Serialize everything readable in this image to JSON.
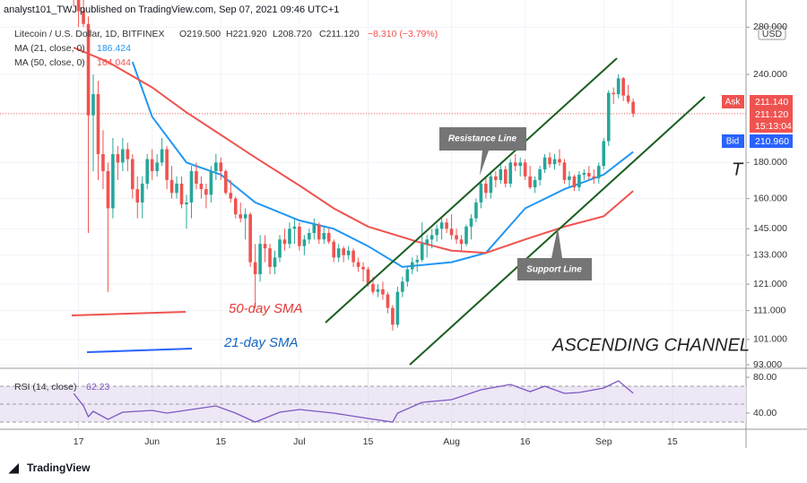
{
  "header": "analyst101_TWJ published on TradingView.com, Sep 07, 2021 09:46 UTC+1",
  "footer": "TradingView",
  "chart_data": {
    "type": "candlestick",
    "log_scale": true,
    "symbol": "Litecoin / U.S. Dollar, 1D, BITFINEX",
    "ohlc_labels": [
      "O219.500",
      "H221.920",
      "L208.720",
      "C211.120"
    ],
    "change_label": "−8.310 (−3.79%)",
    "currency": "USD",
    "up_color": "#26a69a",
    "down_color": "#ef5350",
    "xlim": [
      "2021-05-01",
      "2021-09-30"
    ],
    "xticks": [
      {
        "value": "2021-05-17",
        "label": "17"
      },
      {
        "value": "2021-06-01",
        "label": "Jun"
      },
      {
        "value": "2021-06-15",
        "label": "15"
      },
      {
        "value": "2021-07-01",
        "label": "Jul"
      },
      {
        "value": "2021-07-15",
        "label": "15"
      },
      {
        "value": "2021-08-01",
        "label": "Aug"
      },
      {
        "value": "2021-08-16",
        "label": "16"
      },
      {
        "value": "2021-09-01",
        "label": "Sep"
      },
      {
        "value": "2021-09-15",
        "label": "15"
      }
    ],
    "ylim": [
      92.2,
      306
    ],
    "yticks": [
      {
        "value": 280,
        "label": "280.000"
      },
      {
        "value": 240,
        "label": "240.000"
      },
      {
        "value": 180,
        "label": "180.000"
      },
      {
        "value": 160,
        "label": "160.000"
      },
      {
        "value": 145,
        "label": "145.000"
      },
      {
        "value": 133,
        "label": "133.000"
      },
      {
        "value": 121,
        "label": "121.000"
      },
      {
        "value": 111,
        "label": "111.000"
      },
      {
        "value": 101,
        "label": "101.000"
      },
      {
        "value": 93,
        "label": "93.000"
      }
    ],
    "price_labels": {
      "ask": "Ask",
      "ask_value": {
        "value": 211.14,
        "label": "211.140"
      },
      "last": {
        "value": 211.12,
        "label": "211.120"
      },
      "countdown": "15:13:04",
      "bid": "Bid",
      "bid_value": {
        "value": 210.96,
        "label": "210.960"
      }
    },
    "candles": [
      [
        "2021-05-16",
        340,
        355,
        300,
        320
      ],
      [
        "2021-05-17",
        320,
        325,
        280,
        295
      ],
      [
        "2021-05-18",
        295,
        310,
        280,
        283
      ],
      [
        "2021-05-19",
        283,
        290,
        143,
        210
      ],
      [
        "2021-05-20",
        210,
        240,
        175,
        225
      ],
      [
        "2021-05-21",
        225,
        235,
        170,
        185
      ],
      [
        "2021-05-22",
        185,
        200,
        165,
        175
      ],
      [
        "2021-05-23",
        175,
        180,
        118,
        155
      ],
      [
        "2021-05-24",
        155,
        195,
        150,
        185
      ],
      [
        "2021-05-25",
        185,
        190,
        170,
        180
      ],
      [
        "2021-05-26",
        180,
        195,
        175,
        188
      ],
      [
        "2021-05-27",
        188,
        192,
        175,
        182
      ],
      [
        "2021-05-28",
        182,
        185,
        160,
        165
      ],
      [
        "2021-05-29",
        165,
        172,
        150,
        158
      ],
      [
        "2021-05-30",
        158,
        172,
        150,
        168
      ],
      [
        "2021-05-31",
        168,
        185,
        165,
        182
      ],
      [
        "2021-06-01",
        182,
        188,
        170,
        175
      ],
      [
        "2021-06-02",
        175,
        185,
        172,
        180
      ],
      [
        "2021-06-03",
        180,
        195,
        178,
        188
      ],
      [
        "2021-06-04",
        188,
        190,
        165,
        170
      ],
      [
        "2021-06-05",
        170,
        178,
        160,
        163
      ],
      [
        "2021-06-06",
        163,
        172,
        160,
        168
      ],
      [
        "2021-06-07",
        168,
        172,
        155,
        157
      ],
      [
        "2021-06-08",
        157,
        162,
        145,
        158
      ],
      [
        "2021-06-09",
        158,
        178,
        150,
        175
      ],
      [
        "2021-06-10",
        175,
        180,
        165,
        168
      ],
      [
        "2021-06-11",
        168,
        172,
        160,
        165
      ],
      [
        "2021-06-12",
        165,
        168,
        155,
        162
      ],
      [
        "2021-06-13",
        162,
        178,
        158,
        175
      ],
      [
        "2021-06-14",
        175,
        185,
        170,
        180
      ],
      [
        "2021-06-15",
        180,
        183,
        170,
        175
      ],
      [
        "2021-06-16",
        175,
        176,
        162,
        163
      ],
      [
        "2021-06-17",
        163,
        170,
        158,
        160
      ],
      [
        "2021-06-18",
        160,
        161,
        150,
        152
      ],
      [
        "2021-06-19",
        152,
        158,
        148,
        150
      ],
      [
        "2021-06-20",
        150,
        155,
        140,
        152
      ],
      [
        "2021-06-21",
        152,
        153,
        128,
        130
      ],
      [
        "2021-06-22",
        130,
        138,
        112,
        125
      ],
      [
        "2021-06-23",
        125,
        142,
        122,
        138
      ],
      [
        "2021-06-24",
        138,
        142,
        130,
        136
      ],
      [
        "2021-06-25",
        136,
        138,
        125,
        128
      ],
      [
        "2021-06-26",
        128,
        135,
        125,
        132
      ],
      [
        "2021-06-27",
        132,
        142,
        130,
        140
      ],
      [
        "2021-06-28",
        140,
        145,
        135,
        138
      ],
      [
        "2021-06-29",
        138,
        148,
        136,
        145
      ],
      [
        "2021-06-30",
        145,
        150,
        138,
        146
      ],
      [
        "2021-07-01",
        146,
        148,
        135,
        137
      ],
      [
        "2021-07-02",
        137,
        142,
        133,
        140
      ],
      [
        "2021-07-03",
        140,
        145,
        138,
        143
      ],
      [
        "2021-07-04",
        143,
        150,
        140,
        147
      ],
      [
        "2021-07-05",
        147,
        148,
        138,
        140
      ],
      [
        "2021-07-06",
        140,
        146,
        138,
        143
      ],
      [
        "2021-07-07",
        143,
        145,
        138,
        139
      ],
      [
        "2021-07-08",
        139,
        140,
        130,
        132
      ],
      [
        "2021-07-09",
        132,
        138,
        130,
        136
      ],
      [
        "2021-07-10",
        136,
        137,
        130,
        133
      ],
      [
        "2021-07-11",
        133,
        137,
        131,
        135
      ],
      [
        "2021-07-12",
        135,
        136,
        128,
        130
      ],
      [
        "2021-07-13",
        130,
        132,
        126,
        128
      ],
      [
        "2021-07-14",
        128,
        130,
        122,
        127
      ],
      [
        "2021-07-15",
        127,
        128,
        120,
        121
      ],
      [
        "2021-07-16",
        121,
        124,
        117,
        118
      ],
      [
        "2021-07-17",
        118,
        121,
        116,
        119
      ],
      [
        "2021-07-18",
        119,
        122,
        115,
        117
      ],
      [
        "2021-07-19",
        117,
        118,
        110,
        112
      ],
      [
        "2021-07-20",
        112,
        113,
        104,
        106
      ],
      [
        "2021-07-21",
        106,
        120,
        105,
        118
      ],
      [
        "2021-07-22",
        118,
        124,
        116,
        122
      ],
      [
        "2021-07-23",
        122,
        128,
        120,
        127
      ],
      [
        "2021-07-24",
        127,
        132,
        125,
        130
      ],
      [
        "2021-07-25",
        130,
        133,
        126,
        131
      ],
      [
        "2021-07-26",
        131,
        148,
        130,
        138
      ],
      [
        "2021-07-27",
        138,
        142,
        132,
        140
      ],
      [
        "2021-07-28",
        140,
        145,
        136,
        142
      ],
      [
        "2021-07-29",
        142,
        147,
        139,
        145
      ],
      [
        "2021-07-30",
        145,
        150,
        140,
        148
      ],
      [
        "2021-07-31",
        148,
        150,
        143,
        145
      ],
      [
        "2021-08-01",
        145,
        152,
        140,
        142
      ],
      [
        "2021-08-02",
        142,
        145,
        138,
        140
      ],
      [
        "2021-08-03",
        140,
        142,
        135,
        138
      ],
      [
        "2021-08-04",
        138,
        147,
        137,
        146
      ],
      [
        "2021-08-05",
        146,
        152,
        140,
        150
      ],
      [
        "2021-08-06",
        150,
        160,
        148,
        158
      ],
      [
        "2021-08-07",
        158,
        170,
        155,
        168
      ],
      [
        "2021-08-08",
        168,
        172,
        160,
        163
      ],
      [
        "2021-08-09",
        163,
        175,
        160,
        172
      ],
      [
        "2021-08-10",
        172,
        175,
        166,
        170
      ],
      [
        "2021-08-11",
        170,
        180,
        168,
        176
      ],
      [
        "2021-08-12",
        176,
        178,
        166,
        168
      ],
      [
        "2021-08-13",
        168,
        182,
        166,
        180
      ],
      [
        "2021-08-14",
        180,
        185,
        175,
        178
      ],
      [
        "2021-08-15",
        178,
        183,
        172,
        180
      ],
      [
        "2021-08-16",
        180,
        182,
        170,
        172
      ],
      [
        "2021-08-17",
        172,
        178,
        165,
        166
      ],
      [
        "2021-08-18",
        166,
        172,
        163,
        170
      ],
      [
        "2021-08-19",
        170,
        178,
        167,
        176
      ],
      [
        "2021-08-20",
        176,
        185,
        174,
        183
      ],
      [
        "2021-08-21",
        183,
        186,
        177,
        179
      ],
      [
        "2021-08-22",
        179,
        185,
        176,
        182
      ],
      [
        "2021-08-23",
        182,
        188,
        178,
        180
      ],
      [
        "2021-08-24",
        180,
        182,
        168,
        170
      ],
      [
        "2021-08-25",
        170,
        175,
        166,
        172
      ],
      [
        "2021-08-26",
        172,
        173,
        164,
        166
      ],
      [
        "2021-08-27",
        166,
        175,
        164,
        173
      ],
      [
        "2021-08-28",
        173,
        176,
        170,
        174
      ],
      [
        "2021-08-29",
        174,
        178,
        170,
        172
      ],
      [
        "2021-08-30",
        172,
        176,
        168,
        171
      ],
      [
        "2021-08-31",
        171,
        180,
        168,
        178
      ],
      [
        "2021-09-01",
        178,
        195,
        176,
        193
      ],
      [
        "2021-09-02",
        193,
        228,
        190,
        226
      ],
      [
        "2021-09-03",
        226,
        230,
        218,
        225
      ],
      [
        "2021-09-04",
        225,
        240,
        222,
        237
      ],
      [
        "2021-09-05",
        237,
        238,
        220,
        224
      ],
      [
        "2021-09-06",
        224,
        232,
        218,
        219.5
      ],
      [
        "2021-09-07",
        219.5,
        221.92,
        208.72,
        211.12
      ]
    ],
    "series": [
      {
        "name": "MA (21, close, 0)",
        "color": "#2196f3",
        "x": [
          "2021-05-28",
          "2021-06-01",
          "2021-06-08",
          "2021-06-15",
          "2021-06-22",
          "2021-07-01",
          "2021-07-08",
          "2021-07-15",
          "2021-07-22",
          "2021-08-01",
          "2021-08-08",
          "2021-08-16",
          "2021-08-24",
          "2021-09-01",
          "2021-09-07"
        ],
        "values": [
          250,
          209,
          180,
          173,
          158,
          149,
          145,
          137,
          128,
          130,
          134,
          155,
          165,
          173,
          186.424
        ]
      },
      {
        "name": "MA (50, close, 0)",
        "color": "#ef5350",
        "x": [
          "2021-05-16",
          "2021-05-23",
          "2021-06-01",
          "2021-06-08",
          "2021-06-15",
          "2021-06-22",
          "2021-07-01",
          "2021-07-08",
          "2021-07-15",
          "2021-07-25",
          "2021-08-01",
          "2021-08-08",
          "2021-08-16",
          "2021-08-24",
          "2021-09-01",
          "2021-09-07"
        ],
        "values": [
          262,
          250,
          230,
          212,
          197,
          183,
          167,
          155,
          146,
          139,
          135,
          134,
          140,
          146,
          151,
          164.044
        ]
      }
    ],
    "annotations": [
      "Resistance Line",
      "Support Line",
      "50-day SMA",
      "21-day SMA",
      "ASCENDING CHANNEL",
      "T"
    ],
    "rsi": {
      "name": "RSI (14, close)",
      "color": "#7e57c2",
      "ylim": [
        23,
        88
      ],
      "yticks": [
        {
          "value": 80,
          "label": "80.00"
        },
        {
          "value": 40,
          "label": "40.00"
        }
      ],
      "x": [
        "2021-05-16",
        "2021-05-18",
        "2021-05-19",
        "2021-05-20",
        "2021-05-23",
        "2021-05-26",
        "2021-06-01",
        "2021-06-04",
        "2021-06-09",
        "2021-06-14",
        "2021-06-18",
        "2021-06-22",
        "2021-06-27",
        "2021-07-01",
        "2021-07-08",
        "2021-07-15",
        "2021-07-20",
        "2021-07-21",
        "2021-07-26",
        "2021-08-01",
        "2021-08-07",
        "2021-08-13",
        "2021-08-17",
        "2021-08-20",
        "2021-08-24",
        "2021-08-27",
        "2021-09-01",
        "2021-09-04",
        "2021-09-07"
      ],
      "values": [
        62,
        48,
        36,
        42,
        33,
        41,
        43,
        40,
        44,
        48,
        40,
        30,
        41,
        44,
        40,
        34,
        30,
        40,
        52,
        55,
        66,
        72,
        64,
        70,
        62,
        63,
        68,
        76,
        62.23
      ]
    }
  }
}
